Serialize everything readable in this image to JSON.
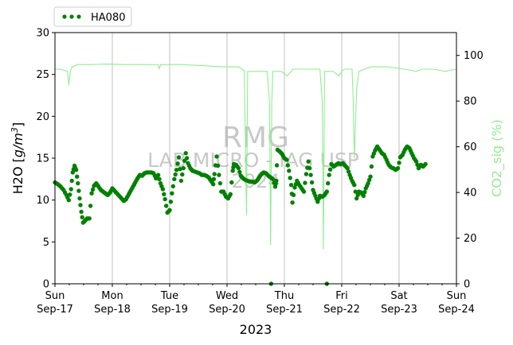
{
  "chart_data": {
    "type": "line",
    "xlabel": "2023",
    "ylabel_left_prefix": "H2O [",
    "ylabel_left_unit": "g/m",
    "ylabel_left_exp": "3",
    "ylabel_left_suffix": "]",
    "ylabel_right": "CO2_sig (%)",
    "ylim_left": [
      0,
      30
    ],
    "ylim_right": [
      0,
      110
    ],
    "yticks_left": [
      "0",
      "5",
      "10",
      "15",
      "20",
      "25",
      "30"
    ],
    "yticks_right": [
      "0",
      "20",
      "40",
      "60",
      "80",
      "100"
    ],
    "x_range_days": [
      0,
      7
    ],
    "xticks": [
      {
        "day": "Sun",
        "date": "Sep-17"
      },
      {
        "day": "Mon",
        "date": "Sep-18"
      },
      {
        "day": "Tue",
        "date": "Sep-19"
      },
      {
        "day": "Wed",
        "date": "Sep-20"
      },
      {
        "day": "Thu",
        "date": "Sep-21"
      },
      {
        "day": "Fri",
        "date": "Sep-22"
      },
      {
        "day": "Sat",
        "date": "Sep-23"
      },
      {
        "day": "Sun",
        "date": "Sep-24"
      }
    ],
    "grid": "vertical",
    "legend_position": "top-left",
    "legend": [
      {
        "name": "HA080",
        "color": "#008000",
        "style": "dotted"
      }
    ],
    "watermark": [
      "RMG",
      "LAB MICRO - IAG USP",
      "2024"
    ],
    "series": [
      {
        "name": "HA080",
        "axis": "left",
        "color": "#008000",
        "marker": "dot",
        "points": [
          [
            0.0,
            12.1
          ],
          [
            0.05,
            11.9
          ],
          [
            0.1,
            11.6
          ],
          [
            0.15,
            11.2
          ],
          [
            0.2,
            10.6
          ],
          [
            0.24,
            10.0
          ],
          [
            0.28,
            11.3
          ],
          [
            0.31,
            13.3
          ],
          [
            0.34,
            14.1
          ],
          [
            0.37,
            13.6
          ],
          [
            0.4,
            12.0
          ],
          [
            0.43,
            10.2
          ],
          [
            0.46,
            8.6
          ],
          [
            0.49,
            7.3
          ],
          [
            0.52,
            7.5
          ],
          [
            0.56,
            7.8
          ],
          [
            0.6,
            7.8
          ],
          [
            0.64,
            10.8
          ],
          [
            0.68,
            11.7
          ],
          [
            0.72,
            12.0
          ],
          [
            0.76,
            11.6
          ],
          [
            0.8,
            11.2
          ],
          [
            0.84,
            11.0
          ],
          [
            0.88,
            10.8
          ],
          [
            0.92,
            10.6
          ],
          [
            0.96,
            10.9
          ],
          [
            1.0,
            11.4
          ],
          [
            1.04,
            11.1
          ],
          [
            1.08,
            10.8
          ],
          [
            1.12,
            10.5
          ],
          [
            1.16,
            10.2
          ],
          [
            1.2,
            9.9
          ],
          [
            1.24,
            10.1
          ],
          [
            1.28,
            10.6
          ],
          [
            1.32,
            11.1
          ],
          [
            1.36,
            11.6
          ],
          [
            1.4,
            12.1
          ],
          [
            1.44,
            12.6
          ],
          [
            1.48,
            13.0
          ],
          [
            1.52,
            12.9
          ],
          [
            1.56,
            13.2
          ],
          [
            1.6,
            13.3
          ],
          [
            1.64,
            13.3
          ],
          [
            1.68,
            13.3
          ],
          [
            1.72,
            13.2
          ],
          [
            1.76,
            12.6
          ],
          [
            1.8,
            13.0
          ],
          [
            1.84,
            12.0
          ],
          [
            1.88,
            11.3
          ],
          [
            1.92,
            10.1
          ],
          [
            1.96,
            8.5
          ],
          [
            2.0,
            8.8
          ],
          [
            2.04,
            10.8
          ],
          [
            2.08,
            12.5
          ],
          [
            2.12,
            13.6
          ],
          [
            2.16,
            15.1
          ],
          [
            2.2,
            12.3
          ],
          [
            2.24,
            13.8
          ],
          [
            2.28,
            15.6
          ],
          [
            2.32,
            14.4
          ],
          [
            2.36,
            13.8
          ],
          [
            2.4,
            13.5
          ],
          [
            2.44,
            13.4
          ],
          [
            2.48,
            13.3
          ],
          [
            2.52,
            13.2
          ],
          [
            2.56,
            13.0
          ],
          [
            2.6,
            13.0
          ],
          [
            2.64,
            12.9
          ],
          [
            2.68,
            12.7
          ],
          [
            2.72,
            12.3
          ],
          [
            2.76,
            11.9
          ],
          [
            2.78,
            13.1
          ],
          [
            2.82,
            15.2
          ],
          [
            2.86,
            13.0
          ],
          [
            2.9,
            11.0
          ],
          [
            2.94,
            11.0
          ],
          [
            2.98,
            10.4
          ],
          [
            3.02,
            10.2
          ],
          [
            3.06,
            10.7
          ],
          [
            3.1,
            13.5
          ],
          [
            3.12,
            14.3
          ],
          [
            3.16,
            14.2
          ],
          [
            3.2,
            13.8
          ],
          [
            3.24,
            12.9
          ],
          [
            3.28,
            12.6
          ],
          [
            3.32,
            12.4
          ],
          [
            3.36,
            12.3
          ],
          [
            3.4,
            12.2
          ],
          [
            3.44,
            12.2
          ],
          [
            3.48,
            12.1
          ],
          [
            3.52,
            12.3
          ],
          [
            3.56,
            12.7
          ],
          [
            3.6,
            13.1
          ],
          [
            3.64,
            13.3
          ],
          [
            3.68,
            13.2
          ],
          [
            3.72,
            12.9
          ],
          [
            3.76,
            12.7
          ],
          [
            3.8,
            12.5
          ],
          [
            3.84,
            11.6
          ],
          [
            3.86,
            12.3
          ],
          [
            3.88,
            16.0
          ],
          [
            3.92,
            15.8
          ],
          [
            3.96,
            15.5
          ],
          [
            4.0,
            15.0
          ],
          [
            4.04,
            14.8
          ],
          [
            4.08,
            13.5
          ],
          [
            4.12,
            11.8
          ],
          [
            4.14,
            9.7
          ],
          [
            4.18,
            11.5
          ],
          [
            4.22,
            12.3
          ],
          [
            4.26,
            11.8
          ],
          [
            4.3,
            11.4
          ],
          [
            4.34,
            11.0
          ],
          [
            4.38,
            13.1
          ],
          [
            4.42,
            14.6
          ],
          [
            4.46,
            13.0
          ],
          [
            4.5,
            11.2
          ],
          [
            4.54,
            10.5
          ],
          [
            4.58,
            9.8
          ],
          [
            4.62,
            10.5
          ],
          [
            4.66,
            10.4
          ],
          [
            4.7,
            10.6
          ],
          [
            4.74,
            11.0
          ],
          [
            4.78,
            13.0
          ],
          [
            4.82,
            14.3
          ],
          [
            4.86,
            14.0
          ],
          [
            4.9,
            14.2
          ],
          [
            4.94,
            14.4
          ],
          [
            4.98,
            14.3
          ],
          [
            5.02,
            14.4
          ],
          [
            5.06,
            14.1
          ],
          [
            5.1,
            13.8
          ],
          [
            5.14,
            13.0
          ],
          [
            5.18,
            12.3
          ],
          [
            5.22,
            11.8
          ],
          [
            5.26,
            10.2
          ],
          [
            5.3,
            11.0
          ],
          [
            5.34,
            10.9
          ],
          [
            5.38,
            10.5
          ],
          [
            5.42,
            11.4
          ],
          [
            5.46,
            12.0
          ],
          [
            5.5,
            12.8
          ],
          [
            5.54,
            15.2
          ],
          [
            5.58,
            15.9
          ],
          [
            5.62,
            16.4
          ],
          [
            5.66,
            16.0
          ],
          [
            5.7,
            15.6
          ],
          [
            5.74,
            15.4
          ],
          [
            5.78,
            14.8
          ],
          [
            5.82,
            14.2
          ],
          [
            5.86,
            13.9
          ],
          [
            5.9,
            13.8
          ],
          [
            5.94,
            13.6
          ],
          [
            5.98,
            13.8
          ],
          [
            6.02,
            15.1
          ],
          [
            6.06,
            15.4
          ],
          [
            6.1,
            16.0
          ],
          [
            6.14,
            16.4
          ],
          [
            6.18,
            16.2
          ],
          [
            6.22,
            15.6
          ],
          [
            6.26,
            15.0
          ],
          [
            6.3,
            14.6
          ],
          [
            6.34,
            13.8
          ],
          [
            6.38,
            14.2
          ],
          [
            6.42,
            14.0
          ],
          [
            6.46,
            14.3
          ]
        ],
        "outliers": [
          [
            3.77,
            0
          ],
          [
            4.74,
            0
          ]
        ]
      },
      {
        "name": "CO2_sig",
        "axis": "right",
        "color": "#90ee90",
        "points": [
          [
            0.0,
            94
          ],
          [
            0.08,
            94
          ],
          [
            0.16,
            93.5
          ],
          [
            0.22,
            93
          ],
          [
            0.24,
            87
          ],
          [
            0.27,
            93
          ],
          [
            0.3,
            95
          ],
          [
            0.4,
            96
          ],
          [
            0.6,
            96
          ],
          [
            0.9,
            96.2
          ],
          [
            1.2,
            96
          ],
          [
            1.6,
            96
          ],
          [
            1.8,
            96
          ],
          [
            1.82,
            94
          ],
          [
            1.84,
            96
          ],
          [
            2.2,
            96
          ],
          [
            2.6,
            95.5
          ],
          [
            2.9,
            95
          ],
          [
            3.2,
            95
          ],
          [
            3.3,
            93.5
          ],
          [
            3.34,
            30
          ],
          [
            3.36,
            93
          ],
          [
            3.5,
            93
          ],
          [
            3.7,
            93
          ],
          [
            3.74,
            80
          ],
          [
            3.76,
            17
          ],
          [
            3.78,
            80
          ],
          [
            3.8,
            93
          ],
          [
            3.95,
            93
          ],
          [
            4.05,
            91
          ],
          [
            4.15,
            94
          ],
          [
            4.4,
            94
          ],
          [
            4.62,
            94
          ],
          [
            4.66,
            80
          ],
          [
            4.68,
            15
          ],
          [
            4.7,
            93
          ],
          [
            4.85,
            93
          ],
          [
            4.95,
            91
          ],
          [
            5.0,
            93
          ],
          [
            5.05,
            94
          ],
          [
            5.18,
            94
          ],
          [
            5.2,
            80
          ],
          [
            5.22,
            55
          ],
          [
            5.26,
            85
          ],
          [
            5.3,
            93
          ],
          [
            5.4,
            94
          ],
          [
            5.5,
            95
          ],
          [
            5.8,
            95
          ],
          [
            6.1,
            94
          ],
          [
            6.3,
            93
          ],
          [
            6.4,
            94
          ],
          [
            6.6,
            94
          ],
          [
            6.8,
            93
          ],
          [
            7.0,
            94
          ]
        ]
      }
    ]
  }
}
